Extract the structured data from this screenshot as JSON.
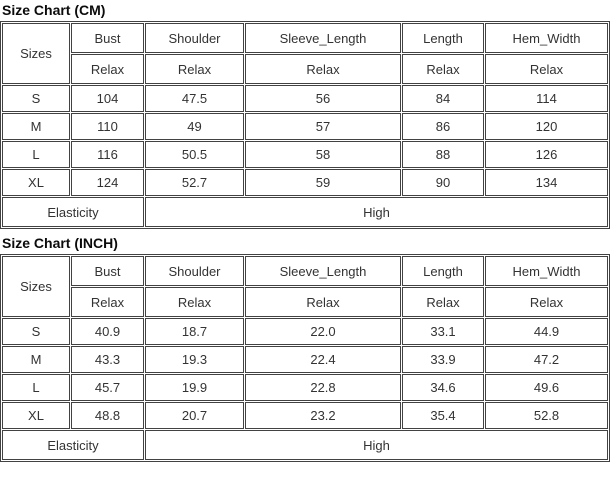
{
  "colors": {
    "border": "#424242",
    "text": "#333333",
    "title": "#0b0b0b",
    "background": "#ffffff"
  },
  "chart_data": [
    {
      "type": "table",
      "title": "Size Chart (CM)",
      "unit": "CM",
      "columns": [
        "Sizes",
        "Bust",
        "Shoulder",
        "Sleeve_Length",
        "Length",
        "Hem_Width"
      ],
      "subheaders": [
        "Relax",
        "Relax",
        "Relax",
        "Relax",
        "Relax"
      ],
      "rows": [
        {
          "size": "S",
          "values": [
            "104",
            "47.5",
            "56",
            "84",
            "114"
          ]
        },
        {
          "size": "M",
          "values": [
            "110",
            "49",
            "57",
            "86",
            "120"
          ]
        },
        {
          "size": "L",
          "values": [
            "116",
            "50.5",
            "58",
            "88",
            "126"
          ]
        },
        {
          "size": "XL",
          "values": [
            "124",
            "52.7",
            "59",
            "90",
            "134"
          ]
        }
      ],
      "elasticity_label": "Elasticity",
      "elasticity_value": "High"
    },
    {
      "type": "table",
      "title": "Size Chart (INCH)",
      "unit": "INCH",
      "columns": [
        "Sizes",
        "Bust",
        "Shoulder",
        "Sleeve_Length",
        "Length",
        "Hem_Width"
      ],
      "subheaders": [
        "Relax",
        "Relax",
        "Relax",
        "Relax",
        "Relax"
      ],
      "rows": [
        {
          "size": "S",
          "values": [
            "40.9",
            "18.7",
            "22.0",
            "33.1",
            "44.9"
          ]
        },
        {
          "size": "M",
          "values": [
            "43.3",
            "19.3",
            "22.4",
            "33.9",
            "47.2"
          ]
        },
        {
          "size": "L",
          "values": [
            "45.7",
            "19.9",
            "22.8",
            "34.6",
            "49.6"
          ]
        },
        {
          "size": "XL",
          "values": [
            "48.8",
            "20.7",
            "23.2",
            "35.4",
            "52.8"
          ]
        }
      ],
      "elasticity_label": "Elasticity",
      "elasticity_value": "High"
    }
  ]
}
